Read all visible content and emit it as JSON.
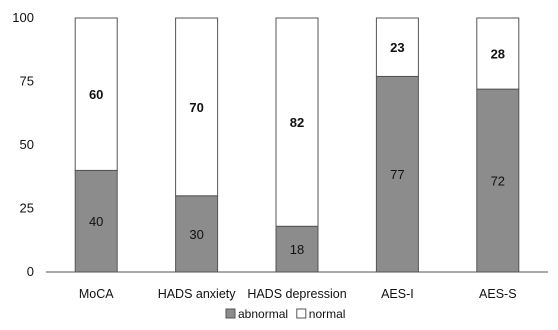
{
  "chart_data": {
    "type": "bar",
    "stacked": true,
    "categories": [
      "MoCA",
      "HADS anxiety",
      "HADS depression",
      "AES-I",
      "AES-S"
    ],
    "series": [
      {
        "name": "abnormal",
        "values": [
          40,
          30,
          18,
          77,
          72
        ],
        "color": "#8c8c8c"
      },
      {
        "name": "normal",
        "values": [
          60,
          70,
          82,
          23,
          28
        ],
        "color": "#ffffff"
      }
    ],
    "yticks": [
      0,
      25,
      50,
      75,
      100
    ],
    "ylim": [
      0,
      100
    ],
    "legend": "bottom",
    "grid": false
  }
}
